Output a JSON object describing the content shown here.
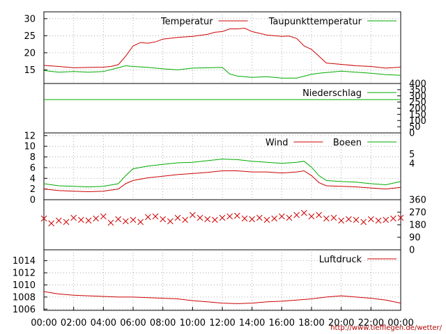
{
  "chart_data": [
    {
      "type": "line",
      "name": "temperature-panel",
      "x_unit": "hour",
      "ylim": [
        11,
        32
      ],
      "yticks": [
        15,
        20,
        25,
        30
      ],
      "grid": true,
      "legend_position": "top-right",
      "series": [
        {
          "name": "Temperatur",
          "color": "#cc0000",
          "x": [
            0,
            1,
            2,
            3,
            4,
            4.5,
            5,
            5.5,
            6,
            6.5,
            7,
            7.5,
            8,
            9,
            10,
            11,
            11.5,
            12,
            12.5,
            13,
            13.5,
            14,
            15,
            16,
            16.5,
            17,
            17.5,
            18,
            18.5,
            19,
            20,
            21,
            22,
            23,
            24
          ],
          "y": [
            16.3,
            16,
            15.6,
            15.7,
            15.8,
            16,
            16.5,
            19,
            22,
            23,
            22.8,
            23.2,
            24,
            24.5,
            24.8,
            25.4,
            26,
            26.2,
            27,
            27,
            27.2,
            26.2,
            25.2,
            24.8,
            24.9,
            24.2,
            22,
            21,
            19,
            17,
            16.6,
            16.2,
            16,
            15.5,
            15.8
          ]
        },
        {
          "name": "Taupunkttemperatur",
          "color": "#00aa00",
          "x": [
            0,
            1,
            2,
            3,
            4,
            5,
            5.5,
            6,
            7,
            8,
            9,
            10,
            11,
            12,
            12.5,
            13,
            14,
            15,
            16,
            17,
            18,
            18.5,
            19,
            20,
            21,
            22,
            23,
            24
          ],
          "y": [
            14.8,
            14.3,
            14.5,
            14.3,
            14.5,
            15.6,
            16.2,
            16,
            15.7,
            15.3,
            15,
            15.5,
            15.6,
            15.7,
            13.8,
            13.2,
            12.8,
            13,
            12.6,
            12.6,
            13.7,
            14,
            14.2,
            14.6,
            14.3,
            14,
            13.6,
            13.4
          ]
        }
      ]
    },
    {
      "type": "line",
      "name": "precipitation-panel",
      "x_unit": "hour",
      "ylim": [
        0,
        400
      ],
      "yticks": [
        0,
        50,
        100,
        150,
        200,
        250,
        300,
        350,
        400
      ],
      "grid": false,
      "legend_position": "top-right",
      "series": [
        {
          "name": "Niederschlag",
          "color": "#00aa00",
          "x": [
            0,
            24
          ],
          "y": [
            270,
            270
          ]
        }
      ]
    },
    {
      "type": "line",
      "name": "wind-panel",
      "x_unit": "hour",
      "ylim": [
        0,
        12.5
      ],
      "yticks": [
        0,
        2,
        4,
        6,
        8,
        10,
        12
      ],
      "right_ticks": [
        4,
        5
      ],
      "grid": true,
      "legend_position": "top-right",
      "series": [
        {
          "name": "Wind",
          "color": "#cc0000",
          "x": [
            0,
            1,
            2,
            3,
            4,
            5,
            5.5,
            6,
            7,
            8,
            9,
            10,
            11,
            12,
            13,
            14,
            15,
            16,
            17,
            17.5,
            18,
            18.5,
            19,
            20,
            21,
            22,
            23,
            24
          ],
          "y": [
            2,
            1.7,
            1.6,
            1.5,
            1.6,
            2,
            3,
            3.6,
            4.1,
            4.4,
            4.7,
            4.9,
            5.1,
            5.4,
            5.4,
            5.2,
            5.2,
            5,
            5.2,
            5.4,
            4.5,
            3.2,
            2.6,
            2.5,
            2.4,
            2.2,
            2,
            2.3
          ]
        },
        {
          "name": "Boeen",
          "color": "#00aa00",
          "x": [
            0,
            1,
            2,
            3,
            4,
            5,
            5.5,
            6,
            7,
            8,
            9,
            10,
            11,
            12,
            13,
            14,
            15,
            16,
            17,
            17.5,
            18,
            18.5,
            19,
            20,
            21,
            22,
            23,
            24
          ],
          "y": [
            3,
            2.6,
            2.5,
            2.4,
            2.5,
            3,
            4.5,
            5.8,
            6.3,
            6.6,
            6.9,
            7,
            7.3,
            7.6,
            7.5,
            7.2,
            7,
            6.8,
            7,
            7.2,
            6.1,
            4.5,
            3.6,
            3.4,
            3.3,
            3,
            2.8,
            3.4
          ]
        }
      ]
    },
    {
      "type": "scatter",
      "name": "wind-direction-panel",
      "x_unit": "hour",
      "ylim": [
        0,
        360
      ],
      "yticks": [
        0,
        90,
        180,
        270,
        360
      ],
      "marker": "x",
      "grid": false,
      "series": [
        {
          "name": "",
          "color": "#cc0000",
          "x": [
            0,
            0.5,
            1,
            1.5,
            2,
            2.5,
            3,
            3.5,
            4,
            4.5,
            5,
            5.5,
            6,
            6.5,
            7,
            7.5,
            8,
            8.5,
            9,
            9.5,
            10,
            10.5,
            11,
            11.5,
            12,
            12.5,
            13,
            13.5,
            14,
            14.5,
            15,
            15.5,
            16,
            16.5,
            17,
            17.5,
            18,
            18.5,
            19,
            19.5,
            20,
            20.5,
            21,
            21.5,
            22,
            22.5,
            23,
            23.5,
            24
          ],
          "y": [
            225,
            190,
            210,
            200,
            230,
            215,
            210,
            225,
            240,
            195,
            220,
            205,
            215,
            200,
            235,
            240,
            220,
            205,
            230,
            215,
            250,
            230,
            220,
            215,
            230,
            240,
            245,
            225,
            220,
            230,
            215,
            225,
            240,
            230,
            250,
            265,
            240,
            250,
            225,
            230,
            210,
            220,
            215,
            200,
            220,
            210,
            215,
            225,
            230
          ]
        }
      ]
    },
    {
      "type": "line",
      "name": "pressure-panel",
      "x_unit": "hour",
      "ylim": [
        1005.8,
        1015.8
      ],
      "yticks": [
        1006,
        1008,
        1010,
        1012,
        1014
      ],
      "grid": true,
      "legend_position": "top-right",
      "series": [
        {
          "name": "Luftdruck",
          "color": "#cc0000",
          "x": [
            0,
            1,
            2,
            3,
            4,
            5,
            6,
            7,
            8,
            9,
            10,
            11,
            12,
            13,
            14,
            15,
            16,
            17,
            18,
            19,
            20,
            21,
            22,
            23,
            24
          ],
          "y": [
            1008.9,
            1008.5,
            1008.3,
            1008.2,
            1008.1,
            1008,
            1008,
            1007.9,
            1007.8,
            1007.7,
            1007.4,
            1007.2,
            1007,
            1006.9,
            1007,
            1007.2,
            1007.3,
            1007.5,
            1007.7,
            1008,
            1008.2,
            1008,
            1007.8,
            1007.5,
            1007
          ]
        }
      ]
    }
  ],
  "x_axis": {
    "range": [
      0,
      24
    ],
    "ticks": [
      0,
      2,
      4,
      6,
      8,
      10,
      12,
      14,
      16,
      18,
      20,
      22,
      24
    ],
    "tick_labels": [
      "00:00",
      "02:00",
      "04:00",
      "06:00",
      "08:00",
      "10:00",
      "12:00",
      "14:00",
      "16:00",
      "18:00",
      "20:00",
      "22:00",
      "00:00"
    ]
  },
  "credit": "http://www.tiefflegen.de/wetter/"
}
